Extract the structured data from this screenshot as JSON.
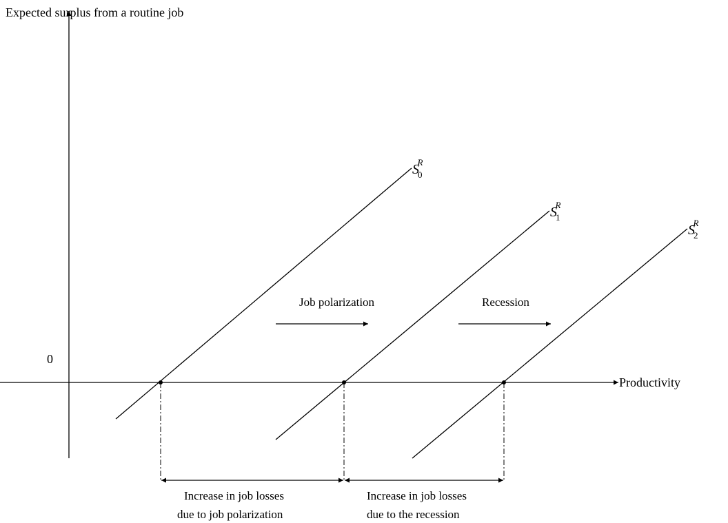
{
  "y_axis_label": "Expected surplus from a routine job",
  "x_axis_label": "Productivity",
  "origin_label": "0",
  "curves": [
    {
      "symbol": "S",
      "subscript": "0",
      "superscript": "R"
    },
    {
      "symbol": "S",
      "subscript": "1",
      "superscript": "R"
    },
    {
      "symbol": "S",
      "subscript": "2",
      "superscript": "R"
    }
  ],
  "shifts": [
    {
      "label": "Job polarization"
    },
    {
      "label": "Recession"
    }
  ],
  "annotations": [
    {
      "lines": [
        "Increase in job losses",
        "due to job polarization"
      ]
    },
    {
      "lines": [
        "Increase in job losses",
        "due to the recession"
      ]
    }
  ]
}
